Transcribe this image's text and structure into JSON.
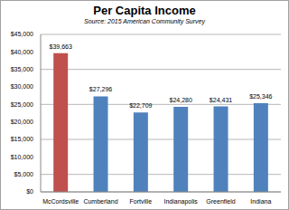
{
  "chart_data": {
    "type": "bar",
    "title": "Per Capita Income",
    "subtitle": "Source: 2015 American Community Survey",
    "categories": [
      "McCordsville",
      "Cumberland",
      "Fortville",
      "Indianapolis",
      "Greenfield",
      "Indiana"
    ],
    "values": [
      39663,
      27296,
      22709,
      24280,
      24431,
      25346
    ],
    "value_labels": [
      "$39,663",
      "$27,296",
      "$22,709",
      "$24,280",
      "$24,431",
      "$25,346"
    ],
    "colors": [
      "#c0504d",
      "#4f81bd",
      "#4f81bd",
      "#4f81bd",
      "#4f81bd",
      "#4f81bd"
    ],
    "ylim": [
      0,
      45000
    ],
    "yticks": [
      {
        "value": 0,
        "label": "$0"
      },
      {
        "value": 5000,
        "label": "$5,000"
      },
      {
        "value": 10000,
        "label": "$10,000"
      },
      {
        "value": 15000,
        "label": "$15,000"
      },
      {
        "value": 20000,
        "label": "$20,000"
      },
      {
        "value": 25000,
        "label": "$25,000"
      },
      {
        "value": 30000,
        "label": "$30,000"
      },
      {
        "value": 35000,
        "label": "$35,000"
      },
      {
        "value": 40000,
        "label": "$40,000"
      },
      {
        "value": 45000,
        "label": "$45,000"
      }
    ],
    "grid": true,
    "data_labels": true
  }
}
